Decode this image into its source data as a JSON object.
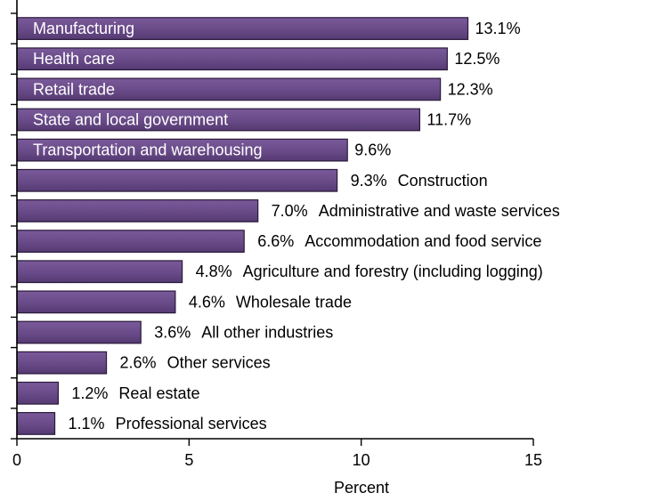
{
  "chart_data": {
    "type": "bar",
    "orientation": "horizontal",
    "categories": [
      "Manufacturing",
      "Health care",
      "Retail trade",
      "State and local government",
      "Transportation and warehousing",
      "Construction",
      "Administrative and waste services",
      "Accommodation and food service",
      "Agriculture and forestry (including logging)",
      "Wholesale trade",
      "All other industries",
      "Other services",
      "Real estate",
      "Professional services"
    ],
    "values": [
      13.1,
      12.5,
      12.3,
      11.7,
      9.6,
      9.3,
      7.0,
      6.6,
      4.8,
      4.6,
      3.6,
      2.6,
      1.2,
      1.1
    ],
    "value_labels": [
      "13.1%",
      "12.5%",
      "12.3%",
      "11.7%",
      "9.6%",
      "9.3%",
      "7.0%",
      "6.6%",
      "4.8%",
      "4.6%",
      "3.6%",
      "2.6%",
      "1.2%",
      "1.1%"
    ],
    "label_inside": [
      true,
      true,
      true,
      true,
      true,
      false,
      false,
      false,
      false,
      false,
      false,
      false,
      false,
      false
    ],
    "xlabel": "Percent",
    "ylabel": "",
    "title": "",
    "xlim": [
      0,
      15
    ],
    "xticks": [
      0,
      5,
      10,
      15
    ],
    "grid": false,
    "bar_color": "#6b4c8a",
    "bar_edge_color": "#2a1a3a"
  }
}
